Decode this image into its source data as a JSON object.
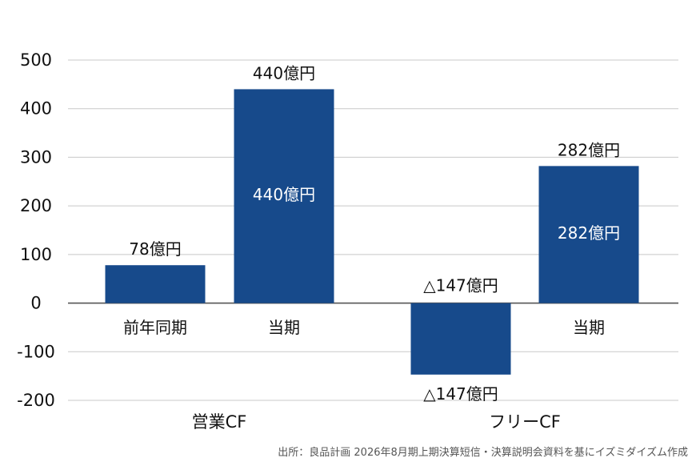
{
  "chart_data": {
    "type": "bar",
    "ylim": [
      -200,
      500
    ],
    "y_ticks": [
      -200,
      -100,
      0,
      100,
      200,
      300,
      400,
      500
    ],
    "y_tick_labels": [
      "-200",
      "-100",
      "0",
      "100",
      "200",
      "300",
      "400",
      "500"
    ],
    "grid": true,
    "bar_color": "#174a8b",
    "groups": [
      {
        "label": "営業CF",
        "bars": [
          {
            "category": "前年同期",
            "value": 78,
            "outside_label": "78億円",
            "inside_label": ""
          },
          {
            "category": "当期",
            "value": 440,
            "outside_label": "440億円",
            "inside_label": "440億円"
          }
        ]
      },
      {
        "label": "フリーCF",
        "bars": [
          {
            "category": "",
            "value": -147,
            "outside_label": "△147億円",
            "below_label": "△147億円",
            "inside_label": ""
          },
          {
            "category": "当期",
            "value": 282,
            "outside_label": "282億円",
            "inside_label": "282億円"
          }
        ]
      }
    ]
  },
  "source_note": "出所：良品計画  2026年8月期上期決算短信・決算説明会資料を基にイズミダイズム作成"
}
